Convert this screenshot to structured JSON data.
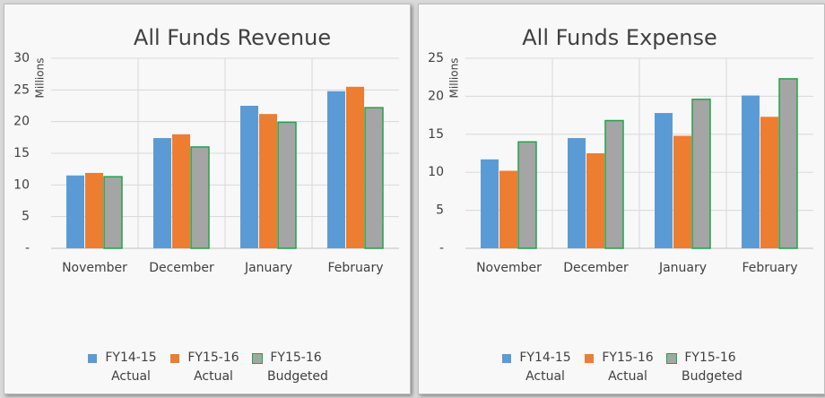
{
  "chart_data": [
    {
      "type": "bar",
      "title": "All Funds Revenue",
      "ylabel": "Millions",
      "categories": [
        "November",
        "December",
        "January",
        "February"
      ],
      "series": [
        {
          "name": "FY14-15 Actual",
          "color": "#5b9bd5",
          "values": [
            11.5,
            17.4,
            22.5,
            24.8
          ]
        },
        {
          "name": "FY15-16 Actual",
          "color": "#ed7d31",
          "values": [
            11.9,
            18.0,
            21.2,
            25.5
          ]
        },
        {
          "name": "FY15-16 Budgeted",
          "color": "#a5a5a5",
          "edgecolor": "#22a34a",
          "values": [
            11.3,
            16.0,
            19.9,
            22.2
          ]
        }
      ],
      "ylim": [
        0,
        30
      ],
      "yticks": [
        {
          "value": 0,
          "label": "-"
        },
        5,
        10,
        15,
        20,
        25,
        30
      ],
      "grid": true,
      "legend": "bottom"
    },
    {
      "type": "bar",
      "title": "All Funds Expense",
      "ylabel": "Millions",
      "categories": [
        "November",
        "December",
        "January",
        "February"
      ],
      "series": [
        {
          "name": "FY14-15 Actual",
          "color": "#5b9bd5",
          "values": [
            11.7,
            14.5,
            17.8,
            20.1
          ]
        },
        {
          "name": "FY15-16 Actual",
          "color": "#ed7d31",
          "values": [
            10.2,
            12.5,
            14.8,
            17.3
          ]
        },
        {
          "name": "FY15-16 Budgeted",
          "color": "#a5a5a5",
          "edgecolor": "#22a34a",
          "values": [
            14.0,
            16.8,
            19.6,
            22.3
          ]
        }
      ],
      "ylim": [
        0,
        25
      ],
      "yticks": [
        {
          "value": 0,
          "label": "-"
        },
        5,
        10,
        15,
        20,
        25
      ],
      "grid": true,
      "legend": "bottom"
    }
  ]
}
